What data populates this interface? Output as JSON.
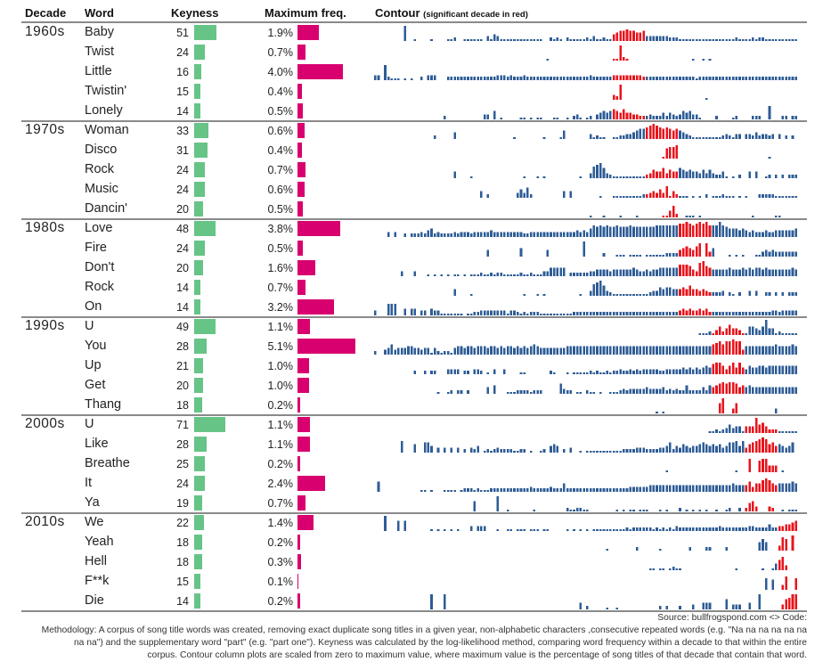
{
  "headers": {
    "decade": "Decade",
    "word": "Word",
    "keyness": "Keyness",
    "maxfreq": "Maximum freq.",
    "contour": "Contour",
    "contour_note": "(significant decade in red)"
  },
  "colors": {
    "keyness_bar": "#66c486",
    "freq_bar": "#d8006f",
    "contour_normal": "#2e5c96",
    "contour_significant": "#e8141c",
    "rule": "#8a8a8a"
  },
  "footer": {
    "source": "Source: bullfrogspond.com <> Code:",
    "methodology_lines": [
      "Methodology: A corpus of song title words was created, removing exact duplicate song titles in a given year, non-alphabetic characters ,consecutive repeated words (e.g. \"Na na na na na na",
      "na na\") and the supplementary word \"part\" (e.g. \"part one\"). Keyness was calculated by the log-likelihood method, comparing word frequency within a decade to that within the entire",
      "corpus. Contour column plots are scaled from zero to maximum value, where maximum value is the percentage of song titles of that decade that contain that word."
    ]
  },
  "chart_data": {
    "type": "table",
    "columns": [
      "Decade",
      "Word",
      "Keyness",
      "Maximum freq.",
      "Contour"
    ],
    "keyness_scale_max": 71,
    "maxfreq_scale_max": 5.1,
    "contour_year_range": [
      1888,
      2015
    ],
    "contour_encoding": "relative height 0-9 per year, grouped by decade",
    "groups": [
      {
        "decade": "1960s",
        "rows": [
          {
            "word": "Baby",
            "keyness": 51,
            "maxfreq": "1.9%",
            "contour": "00 0000000900 1000010000 1120011111 1031431111 1111111110 0212102111 1121311211 4566766556 3333333222 1111111111 1111111211 1121221111 111111"
          },
          {
            "word": "Twist",
            "keyness": 24,
            "maxfreq": "0.7%",
            "contour": "00 0000000000 0000000000 0000000000 0000000000 0000000000 1000000000 0000000000 1192100000 0000000000 0000100101 0000000000 0000000000 000000"
          },
          {
            "word": "Little",
            "keyness": 16,
            "maxfreq": "4.0%",
            "contour": "33 0921110101 0020333000 2222222222 2222233323 2223222222 2222222222 2223222222 3333333332 2222222222 2222212222 2222222222 2222222222 222222"
          },
          {
            "word": "Twistin'",
            "keyness": 15,
            "maxfreq": "0.4%",
            "contour": "00 0000000000 0000000000 0000000000 0000000000 0000000000 0000000000 0000000000 3290000000 0000000000 0000000010 0000000000 0000000000 000000"
          },
          {
            "word": "Lonely",
            "keyness": 14,
            "maxfreq": "0.5%",
            "contour": "00 0000000000 0000000002 0000000000 0330501000 0011010110 0011001023 1012034545 6546443322 2322242432 3545331000 0200001200 0022200800 022022"
          }
        ]
      },
      {
        "decade": "1970s",
        "rows": [
          {
            "word": "Woman",
            "keyness": 33,
            "maxfreq": "0.6%",
            "contour": "00 0000000000 0000002000 0040000000 0000000000 1000000001 0000150000 0003121100 1122334566 7898767656 5432111111 1112321330 3324233230 302020"
          },
          {
            "word": "Disco",
            "keyness": 31,
            "maxfreq": "0.4%",
            "contour": "00 0000000000 0000000000 0000000000 0000000000 0000000000 0000000000 0000000000 0000000000 0000016778 0000000000 0000000000 0000000100 000000"
          },
          {
            "word": "Rock",
            "keyness": 24,
            "maxfreq": "0.7%",
            "contour": "00 0000000000 0000000000 0040000100 0000000000 0001000101 0000000000 1003789632 1111111111 2354463544 6545443535 3224101020 0404001202 020222"
          },
          {
            "word": "Music",
            "keyness": 24,
            "maxfreq": "0.6%",
            "contour": "00 0000000000 0000000000 0000000000 4020000000 0353620000 0000040400 0000001000 1111111112 2343537142 1110101020 1112111010 1000222221 111111"
          },
          {
            "word": "Dancin'",
            "keyness": 20,
            "maxfreq": "0.5%",
            "contour": "00 0000000000 0000000000 0000000000 0000000000 0000000000 0000000000 0001000100 0010000100 0000011472 0011101000 0000000000 0010000001 100000"
          }
        ]
      },
      {
        "decade": "1980s",
        "rows": [
          {
            "word": "Love",
            "keyness": 48,
            "maxfreq": "3.8%",
            "contour": "00 0030300202 2232452322 2232333233 3334333333 3332233333 3333333334 3435767676 6766676666 6667777777 8898789897 7797655545 4343334334 444445"
          },
          {
            "word": "Fire",
            "keyness": 24,
            "maxfreq": "0.5%",
            "contour": "00 0000000000 0000000000 0000000000 0040000000 0050000000 4000000000 0900000200 0111011110 1111112222 4565468083 5000010101 0001134343 333333"
          },
          {
            "word": "Don't",
            "keyness": 20,
            "maxfreq": "1.6%",
            "contour": "00 0000003000 3000101010 1011010111 2112122111 1121121113 3555550222 2223344443 4444445433 4344555555 7776438965 4444454445 4545545444 444454"
          },
          {
            "word": "Rock",
            "keyness": 14,
            "maxfreq": "0.7%",
            "contour": "00 0000000000 0000000000 0040000100 0000000000 0001000101 0000000000 1003789632 1111111111 1233545544 4546443432 2223021020 0303002202 020222"
          },
          {
            "word": "On",
            "keyness": 14,
            "maxfreq": "3.2%",
            "contour": "30 0077700404 4033043311 1111101122 3333333313 3212122211 1111111122 2222222222 2222222222 2222222222 3434334342 2222222222 2222222233 233333"
          }
        ]
      },
      {
        "decade": "1990s",
        "rows": [
          {
            "word": "U",
            "keyness": 49,
            "maxfreq": "1.1%",
            "contour": "00 0000000000 0000000000 0000000000 0000000000 0000000000 0000000000 0000000000 0000000000 0000000000 0000001112 1352464431 1554359441 211111"
          },
          {
            "word": "You",
            "keyness": 28,
            "maxfreq": "5.1%",
            "contour": "20 0346344455 4434414212 2145545545 5545545455 4545456544 4444445555 5555555555 5555555555 5555555555 5555555555 6786889883 5555555556 555565"
          },
          {
            "word": "Up",
            "keyness": 21,
            "maxfreq": "1.0%",
            "contour": "00 0000000000 2002022000 3333022033 2010300300 0011000000 0210001011 1112121121 2232232323 3333223333 3434343454 6775357474 3544554555 555555"
          },
          {
            "word": "Get",
            "keyness": 20,
            "maxfreq": "1.0%",
            "contour": "00 0000000000 0000000100 1202202000 0040500011 1222212220 0000632201 1021101001 1123233333 4333342323 2252222425 4567677645 4544444444 444444"
          },
          {
            "word": "Thang",
            "keyness": 18,
            "maxfreq": "0.2%",
            "contour": "00 0000000000 0000000000 0000000000 0000000000 0000000000 0000000000 0000000000 0000000000 0001010000 0000000000 0069003600 0000000003 000000"
          }
        ]
      },
      {
        "decade": "2000s",
        "rows": [
          {
            "word": "U",
            "keyness": 71,
            "maxfreq": "1.1%",
            "contour": "00 0000000000 0000000000 0000000000 0000000000 0000000000 0000000000 0000000000 0000000000 0000000000 0000000001 1212353441 4449564222 111111"
          },
          {
            "word": "Like",
            "keyness": 28,
            "maxfreq": "1.1%",
            "contour": "00 0000007000 5006640303 0303020324 0121232222 1122010012 0454020300 1011111111 1112222333 2222334624 3543445654 5453466747 3567898564 543460"
          },
          {
            "word": "Breathe",
            "keyness": 25,
            "maxfreq": "0.2%",
            "contour": "00 0000000000 0000000000 0000000000 0000000000 0000000000 0000000000 0000000000 0000000000 0000001000 0000000000 0000000100 0800788444 010000"
          },
          {
            "word": "It",
            "keyness": 24,
            "maxfreq": "2.4%",
            "contour": "06 0000000000 0011010001 1110122212 1112222222 2222232222 2322252222 2222222222 2222233333 3444444444 4444444444 4444445444 4635578754 555565"
          },
          {
            "word": "Ya",
            "keyness": 19,
            "maxfreq": "0.7%",
            "contour": "00 0000000000 0000000000 0000000060 0000090010 0000001000 0000002112 2110000000 0101011011 1000101000 2010101010 0100120020 2563000320 010111"
          }
        ]
      },
      {
        "decade": "2010s",
        "rows": [
          {
            "word": "We",
            "keyness": 22,
            "maxfreq": "1.4%",
            "contour": "00 0900060600 0000010101 0101000303 3300010011 0111011101 1000001010 1010111111 1111212222 2212121213 2222222222 2232222222 2332222422 334456"
          },
          {
            "word": "Yeah",
            "keyness": 18,
            "maxfreq": "0.2%",
            "contour": "00 0000000000 0000000000 0000000000 0000000000 0000000000 0000000000 0000000010 0000000200 0000100000 0002000022 0000200000 0000575000 387090"
          },
          {
            "word": "Hell",
            "keyness": 18,
            "maxfreq": "0.3%",
            "contour": "00 0000000000 0000000000 0000000000 0000000000 0000000000 0000000000 0000000000 0000000000 0110110121 1000000000 0000000100 0000010014 683000"
          },
          {
            "word": "F**k",
            "keyness": 15,
            "maxfreq": "0.1%",
            "contour": "00 0000000000 0000000000 0000000000 0000000000 0000000000 0000000000 0000000000 0000000000 0000000000 0000000000 0000000000 0000007060 038007"
          },
          {
            "word": "Die",
            "keyness": 14,
            "maxfreq": "0.2%",
            "contour": "00 0000000000 0000090009 0000000000 0000000000 0000000000 0000000000 4020000010 0100000000 0000202000 2000300444 0000603330 0400900000 036799"
          }
        ]
      }
    ]
  }
}
